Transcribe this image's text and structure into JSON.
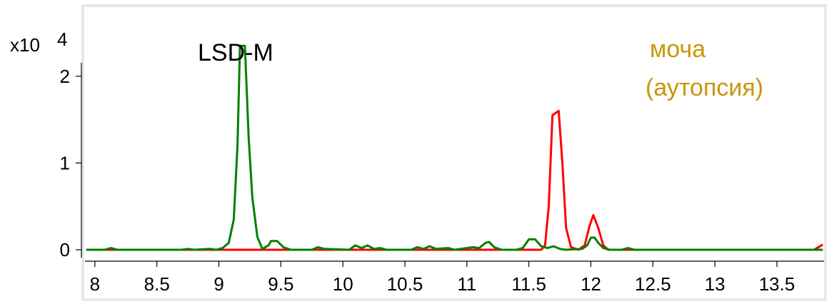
{
  "chart_data": {
    "type": "line",
    "title": "",
    "xlabel": "",
    "ylabel": "",
    "multiplier_label": "x10",
    "multiplier_exponent": "4",
    "xlim": [
      7.92,
      13.88
    ],
    "ylim": [
      0,
      2.5
    ],
    "x_ticks": [
      8,
      8.5,
      9,
      9.5,
      10,
      10.5,
      11,
      11.5,
      12,
      12.5,
      13,
      13.5
    ],
    "x_tick_labels": [
      "8",
      "8.5",
      "9",
      "9.5",
      "10",
      "10.5",
      "11",
      "11.5",
      "12",
      "12.5",
      "13",
      "13.5"
    ],
    "y_ticks": [
      0,
      1,
      2
    ],
    "y_tick_labels": [
      "0",
      "1",
      "2"
    ],
    "grid": false,
    "annotations": {
      "compound_label": "LSD-M",
      "sample_line1": "моча",
      "sample_line2": "(аутопсия)",
      "sample_color": "#c8960a"
    },
    "series": [
      {
        "color": "#008000",
        "points": [
          [
            7.93,
            0.0
          ],
          [
            8.08,
            0.0
          ],
          [
            8.13,
            0.02
          ],
          [
            8.18,
            0.0
          ],
          [
            8.7,
            0.0
          ],
          [
            8.75,
            0.01
          ],
          [
            8.8,
            0.0
          ],
          [
            8.93,
            0.01
          ],
          [
            8.98,
            0.0
          ],
          [
            9.03,
            0.02
          ],
          [
            9.08,
            0.08
          ],
          [
            9.12,
            0.35
          ],
          [
            9.15,
            1.2
          ],
          [
            9.17,
            2.35
          ],
          [
            9.21,
            2.35
          ],
          [
            9.24,
            1.3
          ],
          [
            9.27,
            0.6
          ],
          [
            9.31,
            0.15
          ],
          [
            9.35,
            0.01
          ],
          [
            9.4,
            0.05
          ],
          [
            9.42,
            0.1
          ],
          [
            9.47,
            0.1
          ],
          [
            9.52,
            0.03
          ],
          [
            9.58,
            0.0
          ],
          [
            9.75,
            0.0
          ],
          [
            9.8,
            0.03
          ],
          [
            9.85,
            0.01
          ],
          [
            10.05,
            0.0
          ],
          [
            10.1,
            0.05
          ],
          [
            10.15,
            0.02
          ],
          [
            10.2,
            0.05
          ],
          [
            10.25,
            0.01
          ],
          [
            10.3,
            0.02
          ],
          [
            10.35,
            0.0
          ],
          [
            10.55,
            0.0
          ],
          [
            10.6,
            0.03
          ],
          [
            10.65,
            0.01
          ],
          [
            10.7,
            0.04
          ],
          [
            10.75,
            0.01
          ],
          [
            10.85,
            0.02
          ],
          [
            10.9,
            0.0
          ],
          [
            11.0,
            0.02
          ],
          [
            11.05,
            0.03
          ],
          [
            11.1,
            0.02
          ],
          [
            11.15,
            0.08
          ],
          [
            11.18,
            0.09
          ],
          [
            11.22,
            0.03
          ],
          [
            11.28,
            0.0
          ],
          [
            11.4,
            0.0
          ],
          [
            11.45,
            0.02
          ],
          [
            11.5,
            0.12
          ],
          [
            11.55,
            0.12
          ],
          [
            11.6,
            0.04
          ],
          [
            11.65,
            0.02
          ],
          [
            11.7,
            0.04
          ],
          [
            11.75,
            0.01
          ],
          [
            11.8,
            0.0
          ],
          [
            11.93,
            0.01
          ],
          [
            11.97,
            0.05
          ],
          [
            12.0,
            0.14
          ],
          [
            12.03,
            0.14
          ],
          [
            12.06,
            0.08
          ],
          [
            12.1,
            0.02
          ],
          [
            12.15,
            0.0
          ],
          [
            12.25,
            0.0
          ],
          [
            12.3,
            0.02
          ],
          [
            12.35,
            0.0
          ],
          [
            13.87,
            0.0
          ]
        ]
      },
      {
        "color": "#ff0000",
        "points": [
          [
            7.93,
            0.0
          ],
          [
            11.6,
            0.0
          ],
          [
            11.63,
            0.05
          ],
          [
            11.66,
            0.5
          ],
          [
            11.69,
            1.55
          ],
          [
            11.74,
            1.6
          ],
          [
            11.77,
            1.0
          ],
          [
            11.8,
            0.25
          ],
          [
            11.84,
            0.03
          ],
          [
            11.9,
            0.0
          ],
          [
            11.95,
            0.05
          ],
          [
            11.99,
            0.28
          ],
          [
            12.02,
            0.4
          ],
          [
            12.06,
            0.25
          ],
          [
            12.1,
            0.05
          ],
          [
            12.14,
            0.0
          ],
          [
            13.8,
            0.0
          ],
          [
            13.87,
            0.06
          ]
        ]
      }
    ]
  }
}
